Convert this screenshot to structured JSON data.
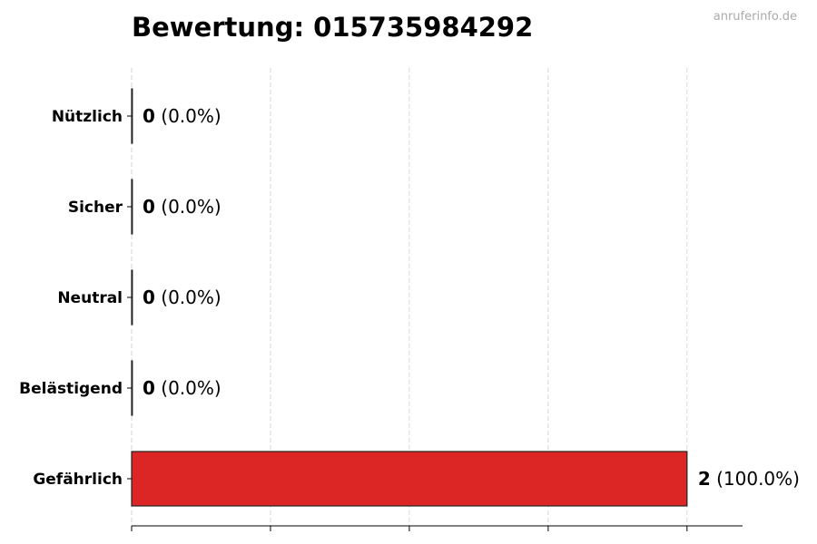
{
  "watermark": "anruferinfo.de",
  "chart_data": {
    "type": "bar",
    "orientation": "horizontal",
    "title": "Bewertung: 015735984292",
    "categories": [
      "Nützlich",
      "Sicher",
      "Neutral",
      "Belästigend",
      "Gefährlich"
    ],
    "values": [
      0,
      0,
      0,
      0,
      2
    ],
    "percent_labels": [
      "(0.0%)",
      "(0.0%)",
      "(0.0%)",
      "(0.0%)",
      "(100.0%)"
    ],
    "bar_color": "#dc2626",
    "xlim": [
      0,
      2.2
    ],
    "xticks": [
      0,
      0.5,
      1,
      1.5,
      2
    ],
    "xtick_labels_shown": false,
    "grid": "vertical dashed",
    "xlabel": "",
    "ylabel": ""
  }
}
